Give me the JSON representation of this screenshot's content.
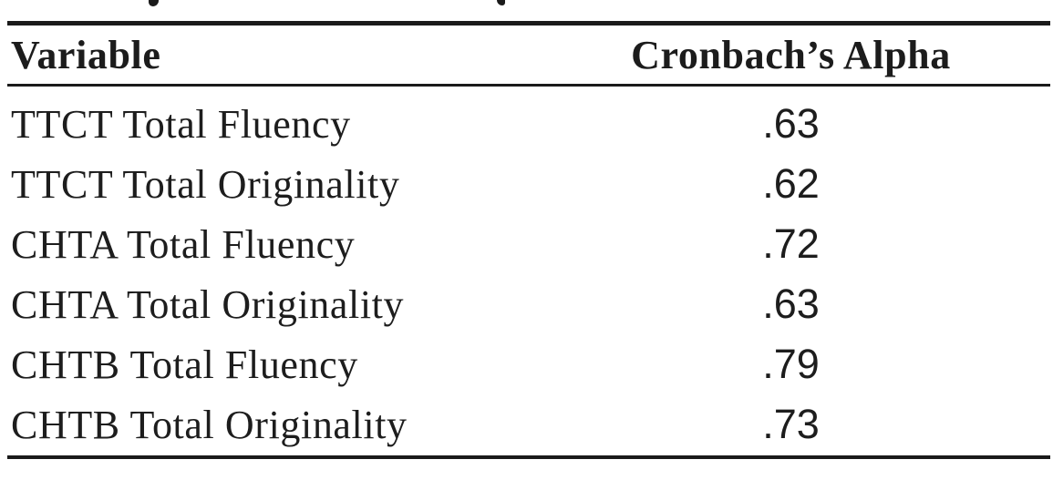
{
  "page": {
    "background": "#ffffff",
    "text_color": "#1d1d1d",
    "rule_color": "#1a1a1a"
  },
  "table": {
    "header": {
      "variable_label": "Variable",
      "alpha_label": "Cronbach’s Alpha"
    },
    "rows": [
      {
        "variable": "TTCT Total Fluency",
        "alpha": ".63"
      },
      {
        "variable": "TTCT Total Originality",
        "alpha": ".62"
      },
      {
        "variable": "CHTA Total Fluency",
        "alpha": ".72"
      },
      {
        "variable": "CHTA Total Originality",
        "alpha": ".63"
      },
      {
        "variable": "CHTB Total Fluency",
        "alpha": ".79"
      },
      {
        "variable": "CHTB Total Originality",
        "alpha": ".73"
      }
    ]
  }
}
